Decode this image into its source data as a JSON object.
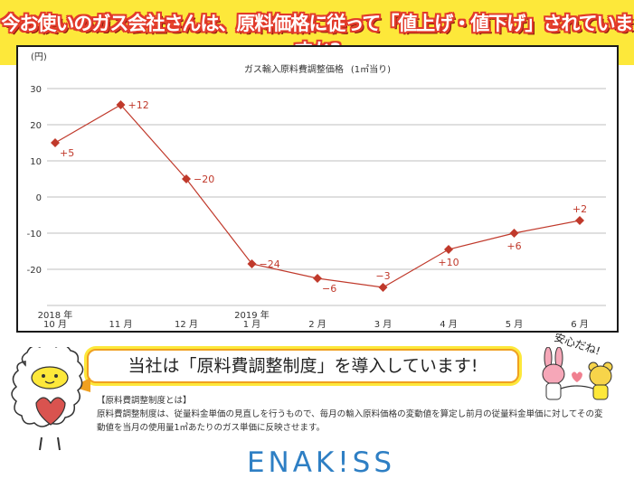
{
  "banner": {
    "title": "今お使いのガス会社さんは、原料価格に従って「値上げ・値下げ」されていますか?"
  },
  "chart_data": {
    "type": "line",
    "title": "ガス輸入原料費調整価格",
    "subtitle": "(1㎥当り)",
    "ylabel": "(円)",
    "ylim": [
      -30,
      30
    ],
    "yticks": [
      30,
      20,
      10,
      0,
      -10,
      -20
    ],
    "grid": true,
    "categories": [
      {
        "year": "2018 年",
        "month": "10 月"
      },
      {
        "year": "",
        "month": "11 月"
      },
      {
        "year": "",
        "month": "12 月"
      },
      {
        "year": "2019 年",
        "month": "1 月"
      },
      {
        "year": "",
        "month": "2 月"
      },
      {
        "year": "",
        "month": "3 月"
      },
      {
        "year": "",
        "month": "4 月"
      },
      {
        "year": "",
        "month": "5 月"
      },
      {
        "year": "",
        "month": "6 月"
      }
    ],
    "series": [
      {
        "values": [
          15,
          25.5,
          5,
          -18.5,
          -22.5,
          -25,
          -14.5,
          -10,
          -6.5
        ],
        "labels": [
          "+5",
          "+12",
          "−20",
          "−24",
          "−6",
          "−3",
          "+10",
          "+6",
          "+2"
        ],
        "label_positions": [
          "below-right",
          "right",
          "right",
          "right",
          "below-right",
          "above",
          "below",
          "below",
          "above"
        ],
        "color": "#c0392b"
      }
    ]
  },
  "callout": {
    "text": "当社は「原料費調整制度」を導入しています!"
  },
  "stamp": "安心だね!",
  "description": {
    "heading": "【原料費調整制度とは】",
    "body": "原料費調整制度は、従量料金単価の見直しを行うもので、毎月の輸入原料価格の変動値を算定し前月の従量料金単価に対してその変動値を当月の使用量1㎥あたりのガス単価に反映させます。"
  },
  "logo": "ENAK!SS",
  "colors": {
    "banner": "#fde83a",
    "title_outline": "#e23a2a",
    "line": "#c0392b",
    "logo": "#2e7fc4",
    "callout_border": "#f0a020"
  }
}
